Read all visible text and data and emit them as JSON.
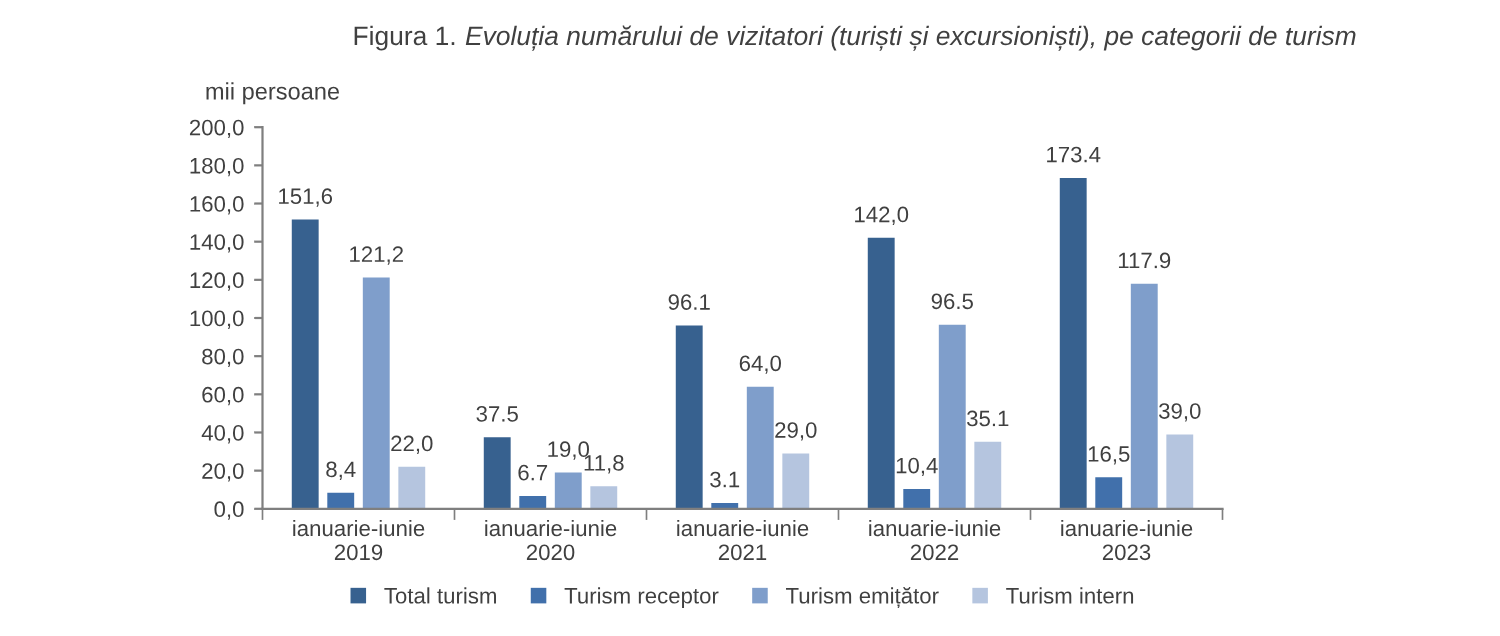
{
  "chart_data": {
    "type": "bar",
    "title": "Figura 1.",
    "subtitle": "Evoluția numărului de vizitatori (turiști și excursioniști), pe categorii de turism",
    "ylabel": "mii persoane",
    "categories": [
      "ianuarie-iunie\n2019",
      "ianuarie-iunie\n2020",
      "ianuarie-iunie\n2021",
      "ianuarie-iunie\n2022",
      "ianuarie-iunie\n2023"
    ],
    "series": [
      {
        "name": "Total turism",
        "color": "#37618f",
        "values": [
          151.6,
          37.5,
          96.1,
          142.0,
          173.4
        ],
        "value_labels": [
          "151,6",
          "37.5",
          "96.1",
          "142,0",
          "173.4"
        ]
      },
      {
        "name": "Turism receptor",
        "color": "#4170ab",
        "values": [
          8.4,
          6.7,
          3.1,
          10.4,
          16.5
        ],
        "value_labels": [
          "8,4",
          "6.7",
          "3.1",
          "10,4",
          "16,5"
        ]
      },
      {
        "name": "Turism emițător",
        "color": "#7f9ecb",
        "values": [
          121.2,
          19.0,
          64.0,
          96.5,
          117.9
        ],
        "value_labels": [
          "121,2",
          "19,0",
          "64,0",
          "96.5",
          "117.9"
        ]
      },
      {
        "name": "Turism intern",
        "color": "#b5c5df",
        "values": [
          22.0,
          11.8,
          29.0,
          35.1,
          39.0
        ],
        "value_labels": [
          "22,0",
          "11,8",
          "29,0",
          "35.1",
          "39,0"
        ]
      }
    ],
    "ylim": [
      0,
      200
    ],
    "yticks": [
      {
        "value": 0,
        "label": "0,0"
      },
      {
        "value": 20,
        "label": "20,0"
      },
      {
        "value": 40,
        "label": "40,0"
      },
      {
        "value": 60,
        "label": "60,0"
      },
      {
        "value": 80,
        "label": "80,0"
      },
      {
        "value": 100,
        "label": "100,0"
      },
      {
        "value": 120,
        "label": "120,0"
      },
      {
        "value": 140,
        "label": "140,0"
      },
      {
        "value": 160,
        "label": "160,0"
      },
      {
        "value": 180,
        "label": "180,0"
      },
      {
        "value": 200,
        "label": "200,0"
      }
    ],
    "grid": false,
    "legend": "bottom"
  }
}
